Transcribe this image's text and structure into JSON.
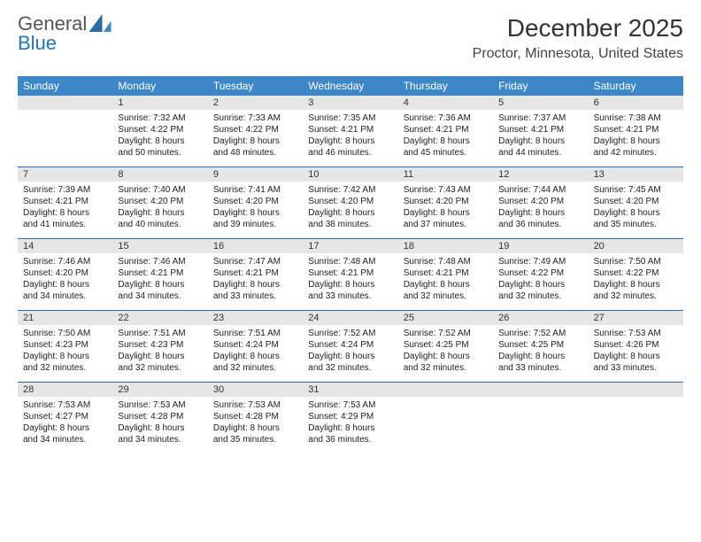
{
  "brand": {
    "part1": "General",
    "part2": "Blue"
  },
  "title": "December 2025",
  "location": "Proctor, Minnesota, United States",
  "colors": {
    "header_bg": "#3d87c9",
    "header_text": "#ffffff",
    "date_bg": "#e6e6e6",
    "week_divider": "#2b6ca3",
    "text": "#222222",
    "brand_accent": "#2176bd"
  },
  "day_headers": [
    "Sunday",
    "Monday",
    "Tuesday",
    "Wednesday",
    "Thursday",
    "Friday",
    "Saturday"
  ],
  "weeks": [
    [
      {
        "date": ""
      },
      {
        "date": "1",
        "sunrise": "Sunrise: 7:32 AM",
        "sunset": "Sunset: 4:22 PM",
        "day1": "Daylight: 8 hours",
        "day2": "and 50 minutes."
      },
      {
        "date": "2",
        "sunrise": "Sunrise: 7:33 AM",
        "sunset": "Sunset: 4:22 PM",
        "day1": "Daylight: 8 hours",
        "day2": "and 48 minutes."
      },
      {
        "date": "3",
        "sunrise": "Sunrise: 7:35 AM",
        "sunset": "Sunset: 4:21 PM",
        "day1": "Daylight: 8 hours",
        "day2": "and 46 minutes."
      },
      {
        "date": "4",
        "sunrise": "Sunrise: 7:36 AM",
        "sunset": "Sunset: 4:21 PM",
        "day1": "Daylight: 8 hours",
        "day2": "and 45 minutes."
      },
      {
        "date": "5",
        "sunrise": "Sunrise: 7:37 AM",
        "sunset": "Sunset: 4:21 PM",
        "day1": "Daylight: 8 hours",
        "day2": "and 44 minutes."
      },
      {
        "date": "6",
        "sunrise": "Sunrise: 7:38 AM",
        "sunset": "Sunset: 4:21 PM",
        "day1": "Daylight: 8 hours",
        "day2": "and 42 minutes."
      }
    ],
    [
      {
        "date": "7",
        "sunrise": "Sunrise: 7:39 AM",
        "sunset": "Sunset: 4:21 PM",
        "day1": "Daylight: 8 hours",
        "day2": "and 41 minutes."
      },
      {
        "date": "8",
        "sunrise": "Sunrise: 7:40 AM",
        "sunset": "Sunset: 4:20 PM",
        "day1": "Daylight: 8 hours",
        "day2": "and 40 minutes."
      },
      {
        "date": "9",
        "sunrise": "Sunrise: 7:41 AM",
        "sunset": "Sunset: 4:20 PM",
        "day1": "Daylight: 8 hours",
        "day2": "and 39 minutes."
      },
      {
        "date": "10",
        "sunrise": "Sunrise: 7:42 AM",
        "sunset": "Sunset: 4:20 PM",
        "day1": "Daylight: 8 hours",
        "day2": "and 38 minutes."
      },
      {
        "date": "11",
        "sunrise": "Sunrise: 7:43 AM",
        "sunset": "Sunset: 4:20 PM",
        "day1": "Daylight: 8 hours",
        "day2": "and 37 minutes."
      },
      {
        "date": "12",
        "sunrise": "Sunrise: 7:44 AM",
        "sunset": "Sunset: 4:20 PM",
        "day1": "Daylight: 8 hours",
        "day2": "and 36 minutes."
      },
      {
        "date": "13",
        "sunrise": "Sunrise: 7:45 AM",
        "sunset": "Sunset: 4:20 PM",
        "day1": "Daylight: 8 hours",
        "day2": "and 35 minutes."
      }
    ],
    [
      {
        "date": "14",
        "sunrise": "Sunrise: 7:46 AM",
        "sunset": "Sunset: 4:20 PM",
        "day1": "Daylight: 8 hours",
        "day2": "and 34 minutes."
      },
      {
        "date": "15",
        "sunrise": "Sunrise: 7:46 AM",
        "sunset": "Sunset: 4:21 PM",
        "day1": "Daylight: 8 hours",
        "day2": "and 34 minutes."
      },
      {
        "date": "16",
        "sunrise": "Sunrise: 7:47 AM",
        "sunset": "Sunset: 4:21 PM",
        "day1": "Daylight: 8 hours",
        "day2": "and 33 minutes."
      },
      {
        "date": "17",
        "sunrise": "Sunrise: 7:48 AM",
        "sunset": "Sunset: 4:21 PM",
        "day1": "Daylight: 8 hours",
        "day2": "and 33 minutes."
      },
      {
        "date": "18",
        "sunrise": "Sunrise: 7:48 AM",
        "sunset": "Sunset: 4:21 PM",
        "day1": "Daylight: 8 hours",
        "day2": "and 32 minutes."
      },
      {
        "date": "19",
        "sunrise": "Sunrise: 7:49 AM",
        "sunset": "Sunset: 4:22 PM",
        "day1": "Daylight: 8 hours",
        "day2": "and 32 minutes."
      },
      {
        "date": "20",
        "sunrise": "Sunrise: 7:50 AM",
        "sunset": "Sunset: 4:22 PM",
        "day1": "Daylight: 8 hours",
        "day2": "and 32 minutes."
      }
    ],
    [
      {
        "date": "21",
        "sunrise": "Sunrise: 7:50 AM",
        "sunset": "Sunset: 4:23 PM",
        "day1": "Daylight: 8 hours",
        "day2": "and 32 minutes."
      },
      {
        "date": "22",
        "sunrise": "Sunrise: 7:51 AM",
        "sunset": "Sunset: 4:23 PM",
        "day1": "Daylight: 8 hours",
        "day2": "and 32 minutes."
      },
      {
        "date": "23",
        "sunrise": "Sunrise: 7:51 AM",
        "sunset": "Sunset: 4:24 PM",
        "day1": "Daylight: 8 hours",
        "day2": "and 32 minutes."
      },
      {
        "date": "24",
        "sunrise": "Sunrise: 7:52 AM",
        "sunset": "Sunset: 4:24 PM",
        "day1": "Daylight: 8 hours",
        "day2": "and 32 minutes."
      },
      {
        "date": "25",
        "sunrise": "Sunrise: 7:52 AM",
        "sunset": "Sunset: 4:25 PM",
        "day1": "Daylight: 8 hours",
        "day2": "and 32 minutes."
      },
      {
        "date": "26",
        "sunrise": "Sunrise: 7:52 AM",
        "sunset": "Sunset: 4:25 PM",
        "day1": "Daylight: 8 hours",
        "day2": "and 33 minutes."
      },
      {
        "date": "27",
        "sunrise": "Sunrise: 7:53 AM",
        "sunset": "Sunset: 4:26 PM",
        "day1": "Daylight: 8 hours",
        "day2": "and 33 minutes."
      }
    ],
    [
      {
        "date": "28",
        "sunrise": "Sunrise: 7:53 AM",
        "sunset": "Sunset: 4:27 PM",
        "day1": "Daylight: 8 hours",
        "day2": "and 34 minutes."
      },
      {
        "date": "29",
        "sunrise": "Sunrise: 7:53 AM",
        "sunset": "Sunset: 4:28 PM",
        "day1": "Daylight: 8 hours",
        "day2": "and 34 minutes."
      },
      {
        "date": "30",
        "sunrise": "Sunrise: 7:53 AM",
        "sunset": "Sunset: 4:28 PM",
        "day1": "Daylight: 8 hours",
        "day2": "and 35 minutes."
      },
      {
        "date": "31",
        "sunrise": "Sunrise: 7:53 AM",
        "sunset": "Sunset: 4:29 PM",
        "day1": "Daylight: 8 hours",
        "day2": "and 36 minutes."
      },
      {
        "date": ""
      },
      {
        "date": ""
      },
      {
        "date": ""
      }
    ]
  ]
}
